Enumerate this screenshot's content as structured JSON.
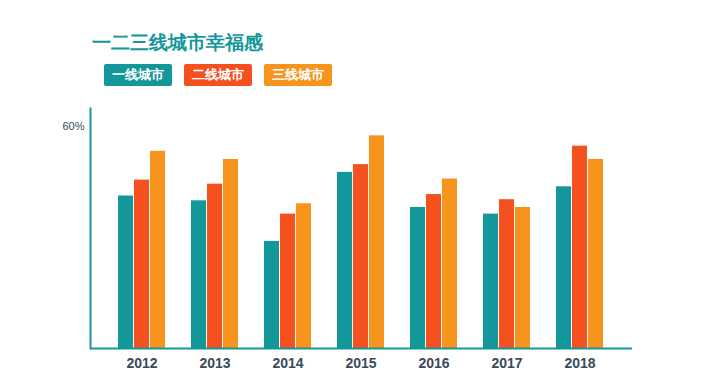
{
  "chart_data": {
    "type": "bar",
    "title": "一二三线城市幸福感",
    "categories": [
      "2012",
      "2013",
      "2014",
      "2015",
      "2016",
      "2017",
      "2018"
    ],
    "series": [
      {
        "name": "一线城市",
        "color": "#14979b",
        "values": [
          41.3,
          40.0,
          29.0,
          47.7,
          38.2,
          36.4,
          43.8
        ]
      },
      {
        "name": "二线城市",
        "color": "#f4511e",
        "values": [
          45.6,
          44.5,
          36.4,
          49.8,
          41.7,
          40.3,
          54.8
        ]
      },
      {
        "name": "三线城市",
        "color": "#f7941d",
        "values": [
          53.4,
          51.2,
          39.2,
          57.6,
          45.9,
          38.2,
          51.2
        ]
      }
    ],
    "ylim": [
      0,
      65
    ],
    "yticks": [
      {
        "value": 60,
        "label": "60%"
      }
    ],
    "grid": false,
    "legend": "top-left"
  }
}
